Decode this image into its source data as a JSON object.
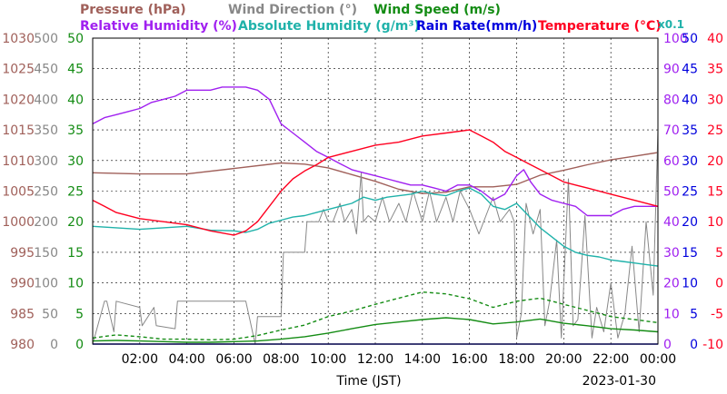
{
  "chart_data": {
    "type": "line",
    "legend_row1": [
      {
        "key": "pressure",
        "label": "Pressure (hPa)",
        "color": "#a0605a"
      },
      {
        "key": "wind_dir",
        "label": "Wind Direction (°)",
        "color": "#888888"
      },
      {
        "key": "wind_speed",
        "label": "Wind Speed (m/s)",
        "color": "#148c14"
      }
    ],
    "legend_row2": [
      {
        "key": "rh",
        "label": "Relative Humidity (%)",
        "color": "#a020f0"
      },
      {
        "key": "ah",
        "label": "Absolute Humidity (g/m³)",
        "color": "#20b2aa"
      },
      {
        "key": "rain",
        "label": "Rain Rate(mm/h)",
        "color": "#0000dd"
      },
      {
        "key": "temp",
        "label": "Temperature (°C)",
        "color": "#ff0020"
      }
    ],
    "ah_scale_note": "x0.1",
    "xlabel": "Time (JST)",
    "date": "2023-01-30",
    "x_ticks": [
      "02:00",
      "04:00",
      "06:00",
      "08:00",
      "10:00",
      "12:00",
      "14:00",
      "16:00",
      "18:00",
      "20:00",
      "22:00",
      "00:00"
    ],
    "x_range_hours": [
      0,
      24
    ],
    "axes": {
      "pressure": {
        "range": [
          980,
          1030
        ],
        "ticks": [
          "1030",
          "1025",
          "1020",
          "1015",
          "1010",
          "1005",
          "1000",
          "995",
          "990",
          "985",
          "980"
        ],
        "color": "#a0605a"
      },
      "wind_dir": {
        "range": [
          0,
          500
        ],
        "ticks": [
          "500",
          "450",
          "400",
          "350",
          "300",
          "250",
          "200",
          "150",
          "100",
          "50",
          "0"
        ],
        "color": "#888888"
      },
      "wind_speed": {
        "range": [
          0,
          50
        ],
        "ticks": [
          "50",
          "45",
          "40",
          "35",
          "30",
          "25",
          "20",
          "15",
          "10",
          "5",
          "0"
        ],
        "color": "#148c14"
      },
      "rh": {
        "range": [
          0,
          100
        ],
        "ticks": [
          "100",
          "90",
          "80",
          "70",
          "60",
          "50",
          "40",
          "30",
          "20",
          "10",
          "0"
        ],
        "color": "#a020f0"
      },
      "rain": {
        "range": [
          0,
          50
        ],
        "ticks": [
          "50",
          "45",
          "40",
          "35",
          "30",
          "25",
          "20",
          "15",
          "10",
          "5",
          "0"
        ],
        "color": "#0000dd"
      },
      "temp": {
        "range": [
          -10,
          40
        ],
        "ticks": [
          "40",
          "35",
          "30",
          "25",
          "20",
          "15",
          "10",
          "5",
          "0",
          "-5",
          "-10"
        ],
        "color": "#ff0020"
      }
    },
    "series": [
      {
        "name": "Pressure (hPa)",
        "key": "pressure",
        "color": "#a0605a",
        "x": [
          0,
          2,
          4,
          6,
          8,
          9,
          10,
          11,
          12,
          13,
          14,
          15,
          16,
          17,
          18,
          19,
          20,
          21,
          22,
          23,
          24
        ],
        "y": [
          1008,
          1007.8,
          1007.8,
          1008.7,
          1009.6,
          1009.4,
          1008.8,
          1007.7,
          1006.6,
          1005.3,
          1004.6,
          1004.8,
          1005.7,
          1005.7,
          1006.1,
          1007.6,
          1008.4,
          1009.3,
          1010.1,
          1010.7,
          1011.3
        ]
      },
      {
        "name": "Wind Direction (°)",
        "key": "wind_dir",
        "color": "#888888",
        "x": [
          0,
          0.5,
          0.6,
          0.9,
          1.0,
          2.0,
          2.1,
          2.6,
          2.7,
          3.5,
          3.6,
          4.0,
          4.1,
          5.4,
          5.5,
          6.4,
          6.5,
          6.9,
          7.0,
          8.0,
          8.1,
          9.0,
          9.1,
          9.6,
          9.8,
          10.0,
          10.2,
          10.5,
          10.7,
          11.0,
          11.2,
          11.4,
          11.5,
          11.7,
          12.0,
          12.3,
          12.6,
          13.0,
          13.3,
          13.6,
          14.0,
          14.3,
          14.6,
          15.0,
          15.3,
          15.6,
          16.0,
          16.4,
          16.7,
          17.0,
          17.3,
          17.5,
          17.7,
          17.9,
          18.0,
          18.2,
          18.4,
          18.7,
          19.0,
          19.2,
          19.4,
          19.7,
          19.9,
          20.2,
          20.4,
          20.6,
          20.9,
          21.2,
          21.4,
          21.7,
          22.0,
          22.3,
          22.6,
          22.9,
          23.2,
          23.5,
          23.8,
          24
        ],
        "y": [
          0,
          70,
          70,
          20,
          70,
          60,
          30,
          60,
          30,
          25,
          70,
          70,
          70,
          70,
          70,
          70,
          70,
          0,
          45,
          45,
          150,
          150,
          200,
          200,
          220,
          200,
          200,
          230,
          200,
          220,
          180,
          280,
          200,
          210,
          200,
          240,
          200,
          230,
          200,
          250,
          200,
          250,
          200,
          240,
          200,
          250,
          220,
          180,
          210,
          240,
          200,
          210,
          220,
          200,
          10,
          50,
          230,
          180,
          220,
          30,
          70,
          170,
          10,
          270,
          30,
          40,
          210,
          10,
          60,
          20,
          100,
          10,
          50,
          160,
          20,
          200,
          80,
          350
        ]
      },
      {
        "name": "Wind Speed (m/s)",
        "key": "wind_speed",
        "color": "#148c14",
        "x": [
          0,
          1,
          2,
          3,
          4,
          5,
          6,
          7,
          8,
          9,
          10,
          11,
          12,
          13,
          14,
          15,
          16,
          17,
          18,
          19,
          20,
          21,
          22,
          23,
          24
        ],
        "y": [
          0.5,
          0.6,
          0.5,
          0.4,
          0.3,
          0.3,
          0.4,
          0.5,
          0.8,
          1.2,
          1.8,
          2.5,
          3.2,
          3.6,
          4.0,
          4.3,
          4.0,
          3.3,
          3.6,
          4.1,
          3.4,
          3.0,
          2.5,
          2.3,
          2.0
        ]
      },
      {
        "name": "Wind Speed peak (m/s)",
        "key": "wind_speed",
        "color": "#148c14",
        "dashed": true,
        "x": [
          0,
          1,
          2,
          3,
          4,
          5,
          6,
          7,
          8,
          9,
          10,
          11,
          12,
          13,
          14,
          15,
          16,
          17,
          18,
          19,
          20,
          21,
          22,
          23,
          24
        ],
        "y": [
          1.0,
          1.5,
          1.2,
          0.8,
          0.8,
          0.7,
          0.8,
          1.4,
          2.3,
          3.1,
          4.5,
          5.4,
          6.5,
          7.5,
          8.5,
          8.2,
          7.4,
          6.0,
          7.0,
          7.5,
          6.5,
          5.5,
          4.5,
          4.0,
          3.5
        ]
      },
      {
        "name": "Relative Humidity (%)",
        "key": "rh",
        "color": "#a020f0",
        "x": [
          0,
          0.5,
          1,
          1.5,
          2,
          2.5,
          3,
          3.5,
          4,
          4.5,
          5,
          5.5,
          6,
          6.5,
          7,
          7.5,
          8,
          8.5,
          9,
          9.5,
          10,
          10.5,
          11,
          11.5,
          12,
          12.5,
          13,
          13.5,
          14,
          14.5,
          15,
          15.5,
          16,
          16.5,
          17,
          17.5,
          18,
          18.3,
          18.6,
          19,
          19.5,
          20,
          20.5,
          21,
          21.5,
          22,
          22.5,
          23,
          23.5,
          24
        ],
        "y": [
          72,
          74,
          75,
          76,
          77,
          79,
          80,
          81,
          83,
          83,
          83,
          84,
          84,
          84,
          83,
          80,
          72,
          69,
          66,
          63,
          61,
          59,
          57,
          56,
          55,
          54,
          53,
          52,
          52,
          51,
          50,
          52,
          52,
          50,
          47,
          49,
          55,
          57,
          53,
          49,
          47,
          46,
          45,
          42,
          42,
          42,
          44,
          45,
          45,
          45
        ]
      },
      {
        "name": "Absolute Humidity (g/m³)",
        "key": "ah",
        "color": "#20b2aa",
        "x": [
          0,
          1,
          2,
          3,
          4,
          5,
          6,
          6.5,
          7,
          7.5,
          8,
          8.5,
          9,
          9.5,
          10,
          10.5,
          11,
          11.5,
          12,
          12.5,
          13,
          13.5,
          14,
          14.5,
          15,
          15.5,
          16,
          16.5,
          17,
          17.5,
          18,
          18.5,
          19,
          19.5,
          20,
          20.5,
          21,
          21.5,
          22,
          22.5,
          23,
          23.5,
          24
        ],
        "y": [
          38.5,
          38,
          37.5,
          38,
          38.5,
          37.2,
          37,
          36.5,
          37.5,
          39.5,
          40.5,
          41.5,
          42,
          43,
          44,
          45,
          46,
          48,
          47,
          48,
          48.5,
          49,
          50,
          49,
          48.5,
          50,
          51,
          49,
          45,
          44,
          46,
          42,
          38,
          35,
          32,
          30,
          29,
          28.5,
          27.5,
          27,
          26.5,
          26,
          25.5
        ]
      },
      {
        "name": "Rain Rate(mm/h)",
        "key": "rain",
        "color": "#0000dd",
        "x": [
          0,
          24
        ],
        "y": [
          0,
          0
        ]
      },
      {
        "name": "Temperature (°C)",
        "key": "temp",
        "color": "#ff0020",
        "x": [
          0,
          0.5,
          1,
          2,
          3,
          4,
          5,
          6,
          6.5,
          7,
          7.5,
          8,
          8.5,
          9,
          9.5,
          10,
          11,
          12,
          13,
          14,
          15,
          16,
          16.5,
          17,
          17.5,
          18,
          18.5,
          19,
          19.5,
          20,
          20.5,
          21,
          22,
          23,
          24
        ],
        "y": [
          13.5,
          12.5,
          11.5,
          10.5,
          10,
          9.5,
          8.5,
          7.8,
          8.5,
          10,
          12.5,
          15,
          17,
          18.3,
          19.3,
          20.5,
          21.5,
          22.5,
          23,
          24,
          24.5,
          25,
          24,
          23,
          21.5,
          20.5,
          19.5,
          18.5,
          17.5,
          16.5,
          16,
          15.5,
          14.5,
          13.5,
          12.5
        ]
      }
    ],
    "grid": true
  }
}
